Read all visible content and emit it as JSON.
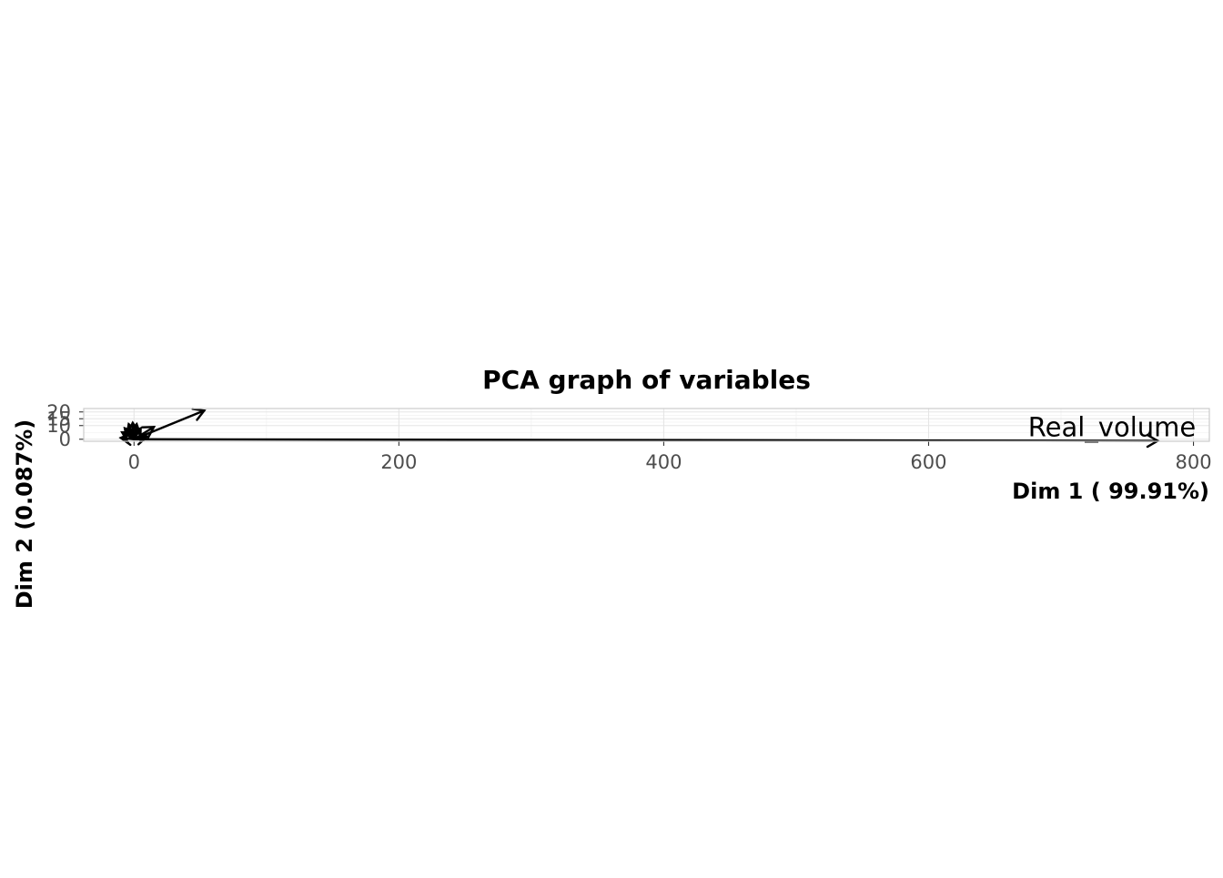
{
  "chart_data": {
    "type": "scatter",
    "subtype": "pca-variable-factor-map",
    "title": "PCA graph of variables",
    "xlabel": "Dim 1 ( 99.91%)",
    "ylabel": "Dim 2 (0.087%)",
    "xlim": [
      -38,
      812
    ],
    "ylim": [
      -1.5,
      22.5
    ],
    "xticks": [
      0,
      200,
      400,
      600,
      800
    ],
    "yticks": [
      0,
      10,
      15,
      20
    ],
    "grid": true,
    "legend": "none",
    "colors": {
      "arrow": "#000000",
      "grid": "#e5e5e5",
      "border": "#cccccc",
      "tick_text": "#4d4d4d"
    },
    "variables": [
      {
        "label": "Real_volume",
        "x": 773,
        "y": -1.2
      },
      {
        "label": "",
        "x": 53,
        "y": 21
      },
      {
        "label": "",
        "x": 15,
        "y": 9
      },
      {
        "label": "",
        "x": 10,
        "y": 2
      },
      {
        "label": "",
        "x": -9,
        "y": 5
      },
      {
        "label": "",
        "x": -7,
        "y": 8
      },
      {
        "label": "",
        "x": -4,
        "y": 11
      },
      {
        "label": "",
        "x": -1,
        "y": 12
      },
      {
        "label": "",
        "x": 2,
        "y": 11
      },
      {
        "label": "",
        "x": 5,
        "y": 8
      },
      {
        "label": "",
        "x": -10,
        "y": 1
      }
    ]
  }
}
